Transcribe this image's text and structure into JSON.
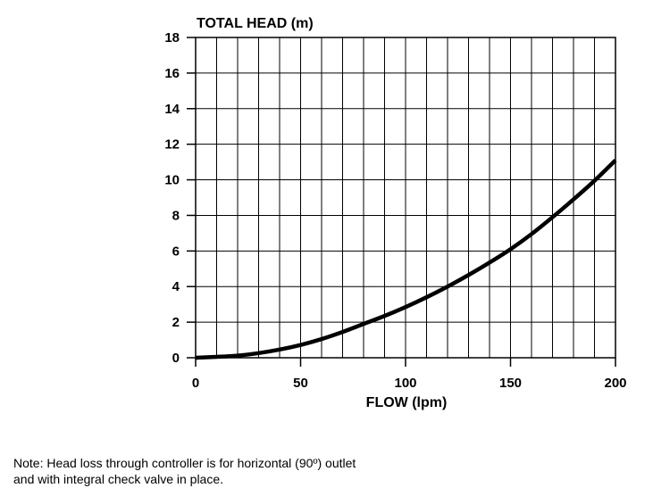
{
  "chart_data": {
    "type": "line",
    "title": "",
    "ylabel": "TOTAL HEAD (m)",
    "xlabel": "FLOW (lpm)",
    "xlim": [
      0,
      200
    ],
    "ylim": [
      0,
      18
    ],
    "x_ticks": [
      0,
      50,
      100,
      150,
      200
    ],
    "y_ticks": [
      0,
      2,
      4,
      6,
      8,
      10,
      12,
      14,
      16,
      18
    ],
    "grid": true,
    "x_grid_step": 10,
    "y_grid_step": 2,
    "series": [
      {
        "color": "#000000",
        "x": [
          0,
          10,
          20,
          30,
          40,
          50,
          60,
          70,
          80,
          90,
          100,
          110,
          120,
          130,
          140,
          150,
          160,
          170,
          180,
          190,
          200
        ],
        "y": [
          0,
          0.05,
          0.12,
          0.26,
          0.46,
          0.72,
          1.05,
          1.45,
          1.9,
          2.35,
          2.85,
          3.4,
          4.0,
          4.65,
          5.35,
          6.1,
          6.95,
          7.9,
          8.9,
          9.95,
          11.1
        ]
      }
    ]
  },
  "note": {
    "line1": "Note: Head loss through controller is for horizontal (90º) outlet",
    "line2": "and with integral check valve in place."
  }
}
